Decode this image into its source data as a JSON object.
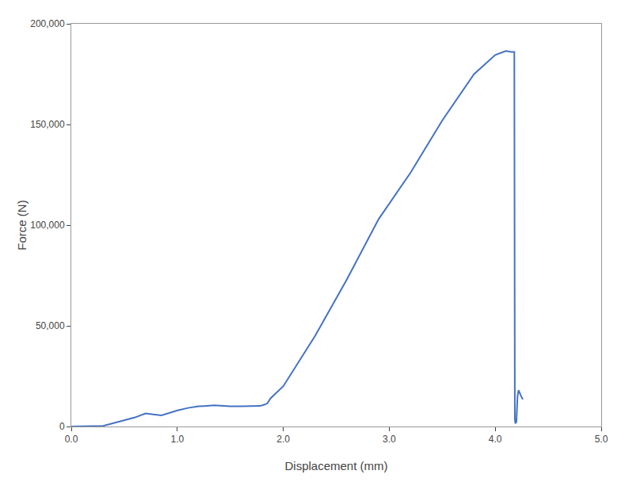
{
  "chart_data": {
    "type": "line",
    "xlabel": "Displacement (mm)",
    "ylabel": "Force (N)",
    "x": [
      0.0,
      0.05,
      0.3,
      0.6,
      0.7,
      0.85,
      1.0,
      1.1,
      1.2,
      1.35,
      1.5,
      1.6,
      1.7,
      1.75,
      1.78,
      1.82,
      1.85,
      1.88,
      2.0,
      2.3,
      2.6,
      2.9,
      3.2,
      3.5,
      3.8,
      4.0,
      4.1,
      4.15,
      4.18,
      4.185,
      4.19,
      4.195,
      4.2,
      4.21,
      4.215,
      4.22,
      4.225,
      4.23,
      4.235,
      4.24,
      4.245,
      4.25,
      4.255,
      4.26
    ],
    "values": [
      0,
      100,
      300,
      4500,
      6500,
      5500,
      8000,
      9200,
      10000,
      10500,
      10000,
      10000,
      10000,
      10000,
      10200,
      10800,
      11500,
      14000,
      20000,
      45000,
      73000,
      103000,
      126000,
      152000,
      175000,
      184500,
      186500,
      186000,
      186000,
      3500,
      1500,
      2000,
      2500,
      15000,
      17000,
      18000,
      17500,
      16500,
      16000,
      15500,
      15000,
      14500,
      14000,
      13500
    ],
    "color": "#4472C4",
    "xlim": [
      0.0,
      5.0
    ],
    "ylim": [
      0,
      200000
    ],
    "xticks": [
      {
        "value": 0,
        "label": "0.0"
      },
      {
        "value": 1,
        "label": "1.0"
      },
      {
        "value": 2,
        "label": "2.0"
      },
      {
        "value": 3,
        "label": "3.0"
      },
      {
        "value": 4,
        "label": "4.0"
      },
      {
        "value": 5,
        "label": "5.0"
      }
    ],
    "yticks": [
      0,
      {
        "value": 50000,
        "label": "50,000"
      },
      {
        "value": 100000,
        "label": "100,000"
      },
      {
        "value": 150000,
        "label": "150,000"
      },
      {
        "value": 200000,
        "label": "200,000"
      }
    ],
    "grid": false
  }
}
